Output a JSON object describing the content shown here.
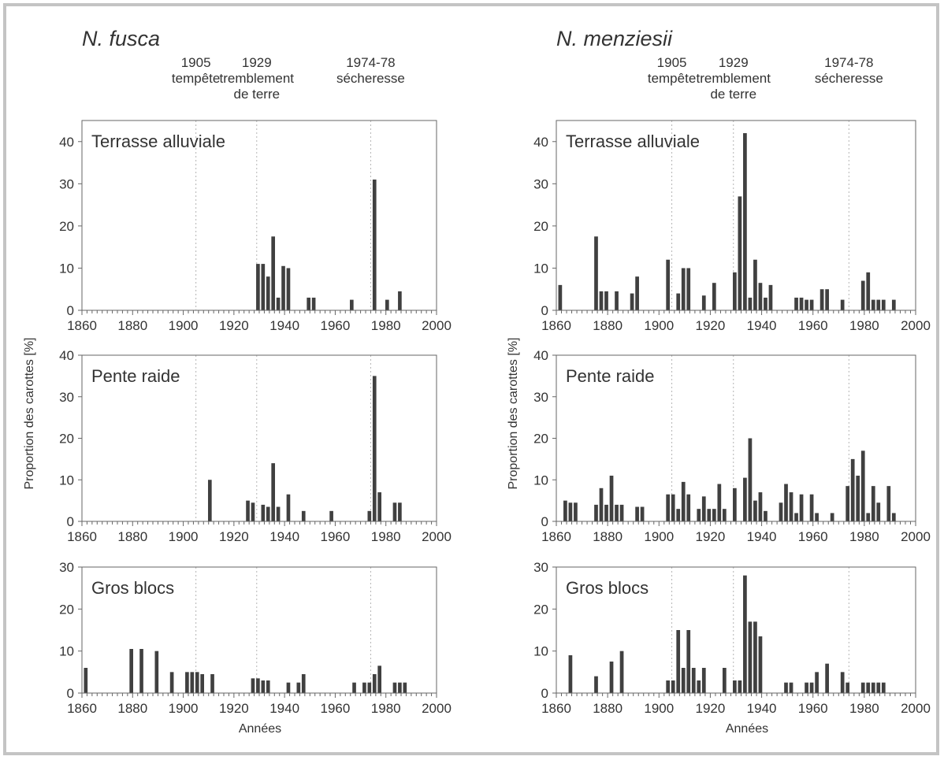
{
  "figure": {
    "ylabel": "Proportion des carottes [%]",
    "xlabel": "Années",
    "colors": {
      "bar": "#404040",
      "axis": "#666666",
      "marker_line": "#b4b4b4",
      "frame": "#c4c4c4"
    }
  },
  "events": [
    {
      "year": 1905,
      "label_lines": [
        "1905",
        "tempête"
      ]
    },
    {
      "year": 1929,
      "label_lines": [
        "1929",
        "tremblement",
        "de terre"
      ]
    },
    {
      "year": 1974,
      "label_lines": [
        "1974-78",
        "sécheresse"
      ]
    }
  ],
  "chart_data": [
    {
      "species": "N. fusca",
      "type": "bar",
      "title": "Terrasse alluviale",
      "xlim": [
        1860,
        2000
      ],
      "ylim": [
        0,
        45
      ],
      "yticks": [
        0,
        10,
        20,
        30,
        40
      ],
      "xticks": [
        1860,
        1880,
        1900,
        1920,
        1940,
        1960,
        1980,
        2000
      ],
      "x": [
        1929,
        1931,
        1933,
        1935,
        1937,
        1939,
        1941,
        1949,
        1951,
        1966,
        1975,
        1980,
        1985
      ],
      "values": [
        11,
        11,
        8,
        17.5,
        3,
        10.5,
        10,
        3,
        3,
        2.5,
        31,
        2.5,
        4.5
      ]
    },
    {
      "species": "N. fusca",
      "type": "bar",
      "title": "Pente raide",
      "xlim": [
        1860,
        2000
      ],
      "ylim": [
        0,
        40
      ],
      "yticks": [
        0,
        10,
        20,
        30,
        40
      ],
      "xticks": [
        1860,
        1880,
        1900,
        1920,
        1940,
        1960,
        1980,
        2000
      ],
      "x": [
        1910,
        1925,
        1927,
        1931,
        1933,
        1935,
        1937,
        1941,
        1947,
        1958,
        1973,
        1975,
        1977,
        1983,
        1985
      ],
      "values": [
        10,
        5,
        4.5,
        4,
        3.5,
        14,
        3.5,
        6.5,
        2.5,
        2.5,
        2.5,
        35,
        7,
        4.5,
        4.5
      ]
    },
    {
      "species": "N. fusca",
      "type": "bar",
      "title": "Gros blocs",
      "xlim": [
        1860,
        2000
      ],
      "ylim": [
        0,
        30
      ],
      "yticks": [
        0,
        10,
        20,
        30
      ],
      "xticks": [
        1860,
        1880,
        1900,
        1920,
        1940,
        1960,
        1980,
        2000
      ],
      "x": [
        1861,
        1879,
        1883,
        1889,
        1895,
        1901,
        1903,
        1905,
        1907,
        1911,
        1927,
        1929,
        1931,
        1933,
        1941,
        1945,
        1947,
        1967,
        1971,
        1973,
        1975,
        1977,
        1983,
        1985,
        1987
      ],
      "values": [
        6,
        10.5,
        10.5,
        10,
        5,
        5,
        5,
        5,
        4.5,
        4.5,
        3.5,
        3.5,
        3,
        3,
        2.5,
        2.5,
        4.5,
        2.5,
        2.5,
        2.5,
        4.5,
        6.5,
        2.5,
        2.5,
        2.5
      ]
    },
    {
      "species": "N. menziesii",
      "type": "bar",
      "title": "Terrasse alluviale",
      "xlim": [
        1860,
        2000
      ],
      "ylim": [
        0,
        45
      ],
      "yticks": [
        0,
        10,
        20,
        30,
        40
      ],
      "xticks": [
        1860,
        1880,
        1900,
        1920,
        1940,
        1960,
        1980,
        2000
      ],
      "x": [
        1861,
        1875,
        1877,
        1879,
        1883,
        1889,
        1891,
        1903,
        1907,
        1909,
        1911,
        1917,
        1921,
        1929,
        1931,
        1933,
        1935,
        1937,
        1939,
        1941,
        1943,
        1953,
        1955,
        1957,
        1959,
        1963,
        1965,
        1971,
        1979,
        1981,
        1983,
        1985,
        1987,
        1991
      ],
      "values": [
        6,
        17.5,
        4.5,
        4.5,
        4.5,
        4,
        8,
        12,
        4,
        10,
        10,
        3.5,
        6.5,
        9,
        27,
        42,
        3,
        12,
        6.5,
        3,
        6,
        3,
        3,
        2.5,
        2.5,
        5,
        5,
        2.5,
        7,
        9,
        2.5,
        2.5,
        2.5,
        2.5
      ]
    },
    {
      "species": "N. menziesii",
      "type": "bar",
      "title": "Pente raide",
      "xlim": [
        1860,
        2000
      ],
      "ylim": [
        0,
        40
      ],
      "yticks": [
        0,
        10,
        20,
        30,
        40
      ],
      "xticks": [
        1860,
        1880,
        1900,
        1920,
        1940,
        1960,
        1980,
        2000
      ],
      "x": [
        1863,
        1865,
        1867,
        1875,
        1877,
        1879,
        1881,
        1883,
        1885,
        1891,
        1893,
        1903,
        1905,
        1907,
        1909,
        1911,
        1915,
        1917,
        1919,
        1921,
        1923,
        1925,
        1929,
        1933,
        1935,
        1937,
        1939,
        1941,
        1947,
        1949,
        1951,
        1953,
        1955,
        1959,
        1961,
        1967,
        1973,
        1975,
        1977,
        1979,
        1981,
        1983,
        1985,
        1989,
        1991
      ],
      "values": [
        5,
        4.5,
        4.5,
        4,
        8,
        4,
        11,
        4,
        4,
        3.5,
        3.5,
        6.5,
        6.5,
        3,
        9.5,
        6.5,
        3,
        6,
        3,
        3,
        9,
        3,
        8,
        10.5,
        20,
        5,
        7,
        2.5,
        4.5,
        9,
        7,
        2,
        6.5,
        6.5,
        2,
        2,
        8.5,
        15,
        11,
        17,
        2,
        8.5,
        4.5,
        8.5,
        2
      ]
    },
    {
      "species": "N. menziesii",
      "type": "bar",
      "title": "Gros blocs",
      "xlim": [
        1860,
        2000
      ],
      "ylim": [
        0,
        30
      ],
      "yticks": [
        0,
        10,
        20,
        30
      ],
      "xticks": [
        1860,
        1880,
        1900,
        1920,
        1940,
        1960,
        1980,
        2000
      ],
      "x": [
        1865,
        1875,
        1881,
        1885,
        1903,
        1905,
        1907,
        1909,
        1911,
        1913,
        1915,
        1917,
        1925,
        1929,
        1931,
        1933,
        1935,
        1937,
        1939,
        1949,
        1951,
        1957,
        1959,
        1961,
        1965,
        1971,
        1973,
        1979,
        1981,
        1983,
        1985,
        1987
      ],
      "values": [
        9,
        4,
        7.5,
        10,
        3,
        3,
        15,
        6,
        15,
        6,
        3,
        6,
        6,
        3,
        3,
        28,
        17,
        17,
        13.5,
        2.5,
        2.5,
        2.5,
        2.5,
        5,
        7,
        5,
        2.5,
        2.5,
        2.5,
        2.5,
        2.5,
        2.5
      ]
    }
  ]
}
